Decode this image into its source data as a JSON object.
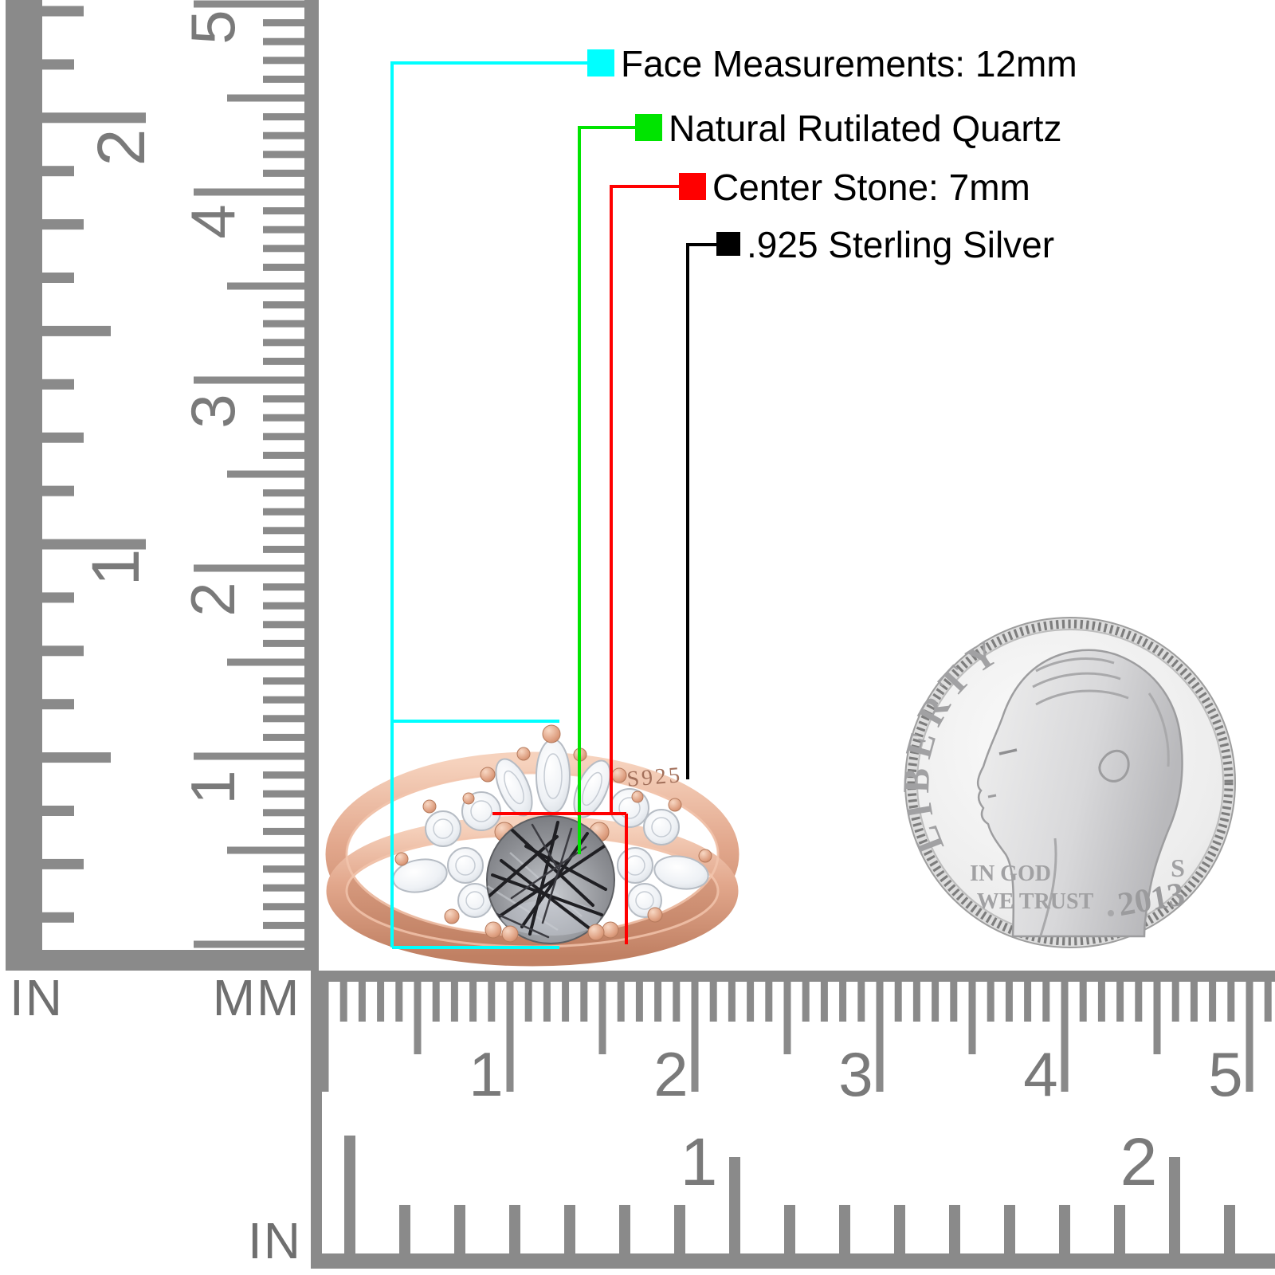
{
  "annotations": {
    "items": [
      {
        "id": "face",
        "label": "Face Measurements: 12mm",
        "color": "#00ffff"
      },
      {
        "id": "stone_type",
        "label": "Natural Rutilated Quartz",
        "color": "#00e400"
      },
      {
        "id": "center_stone",
        "label": "Center Stone: 7mm",
        "color": "#ff0000"
      },
      {
        "id": "metal",
        "label": ".925 Sterling Silver",
        "color": "#000000"
      }
    ]
  },
  "ring": {
    "stamp": "S925"
  },
  "coin": {
    "legend": "LIBERTY",
    "motto_line1": "IN GOD",
    "motto_line2": "WE TRUST",
    "mint_mark": "S",
    "year": "2013"
  },
  "rulers": {
    "left_inch": {
      "unit": "IN",
      "numbers": [
        "1",
        "2"
      ]
    },
    "left_mm": {
      "unit": "MM",
      "numbers": [
        "1",
        "2",
        "3",
        "4",
        "5"
      ]
    },
    "bottom_mm": {
      "numbers": [
        "1",
        "2",
        "3",
        "4",
        "5"
      ]
    },
    "bottom_inch": {
      "unit": "IN",
      "numbers": [
        "1",
        "2"
      ]
    }
  },
  "colors": {
    "annotation_cyan": "#00ffff",
    "annotation_green": "#00e400",
    "annotation_red": "#ff0000",
    "annotation_black": "#000000",
    "rose_gold": "#dfa287",
    "cz_stone": "#eef1f5",
    "quartz_gray": "#8e9095",
    "coin_silver": "#d9d9d9",
    "ruler_gray": "#8a8a8a"
  }
}
